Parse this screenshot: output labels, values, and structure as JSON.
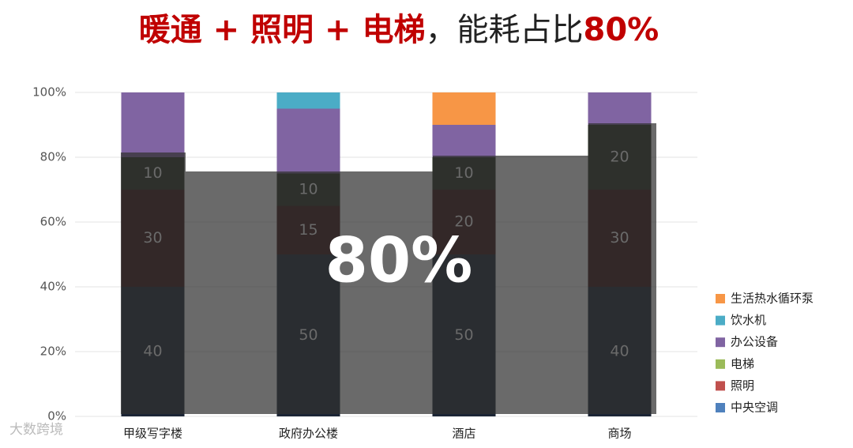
{
  "chart_data": {
    "type": "stacked_bar",
    "title_parts": [
      "暖通 + 照明 + 电梯",
      "，能耗占比",
      "80%"
    ],
    "annotation": "80%",
    "watermark": "大数跨境",
    "categories": [
      "甲级写字楼",
      "政府办公楼",
      "酒店",
      "商场"
    ],
    "series": [
      {
        "name": "中央空调",
        "color": "#1b2535",
        "legend_color": "#4f81bd",
        "values": [
          40,
          50,
          50,
          40
        ],
        "data_labels": true
      },
      {
        "name": "照明",
        "color": "#3b1414",
        "legend_color": "#c0504d",
        "values": [
          30,
          15,
          20,
          30
        ],
        "data_labels": true
      },
      {
        "name": "电梯",
        "color": "#283020",
        "legend_color": "#9bbb59",
        "values": [
          10,
          10,
          10,
          20
        ],
        "data_labels": true
      },
      {
        "name": "办公设备",
        "color": "#8064a2",
        "legend_color": "#8064a2",
        "values": [
          20,
          20,
          10,
          10
        ],
        "data_labels": false
      },
      {
        "name": "饮水机",
        "color": "#4bacc6",
        "legend_color": "#4bacc6",
        "values": [
          0,
          5,
          0,
          0
        ],
        "data_labels": false
      },
      {
        "name": "生活热水循环泵",
        "color": "#f79646",
        "legend_color": "#f79646",
        "values": [
          0,
          0,
          10,
          0
        ],
        "data_labels": false
      }
    ],
    "ylim": [
      0,
      100
    ],
    "yticks": [
      {
        "value": 0,
        "label": "0%"
      },
      {
        "value": 20,
        "label": "20%"
      },
      {
        "value": 40,
        "label": "40%"
      },
      {
        "value": 60,
        "label": "60%"
      },
      {
        "value": 80,
        "label": "80%"
      },
      {
        "value": 100,
        "label": "100%"
      }
    ],
    "grid": true
  }
}
